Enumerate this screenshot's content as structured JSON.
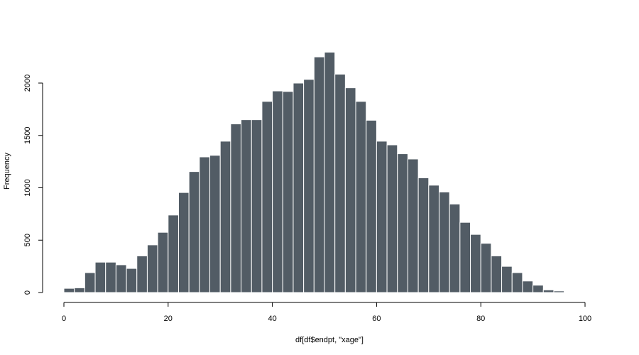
{
  "chart_data": {
    "type": "bar",
    "title": "",
    "xlabel": "df[df$endpt, \"xage\"]",
    "ylabel": "Frequency",
    "bin_width": 2,
    "x_start": 0,
    "xlim": [
      0,
      100
    ],
    "ylim": [
      0,
      2000
    ],
    "x_ticks": [
      0,
      20,
      40,
      60,
      80,
      100
    ],
    "y_ticks": [
      0,
      500,
      1000,
      1500,
      2000
    ],
    "grid": false,
    "bar_color": "#525c65",
    "bar_edge_color": "#ffffff",
    "values": [
      40,
      45,
      190,
      290,
      290,
      265,
      230,
      350,
      455,
      575,
      740,
      955,
      1155,
      1295,
      1310,
      1445,
      1610,
      1650,
      1650,
      1825,
      1925,
      1920,
      2000,
      2035,
      2250,
      2295,
      2085,
      1955,
      1825,
      1645,
      1445,
      1410,
      1325,
      1275,
      1095,
      1025,
      960,
      845,
      670,
      555,
      470,
      350,
      250,
      190,
      110,
      70,
      25,
      15
    ]
  }
}
